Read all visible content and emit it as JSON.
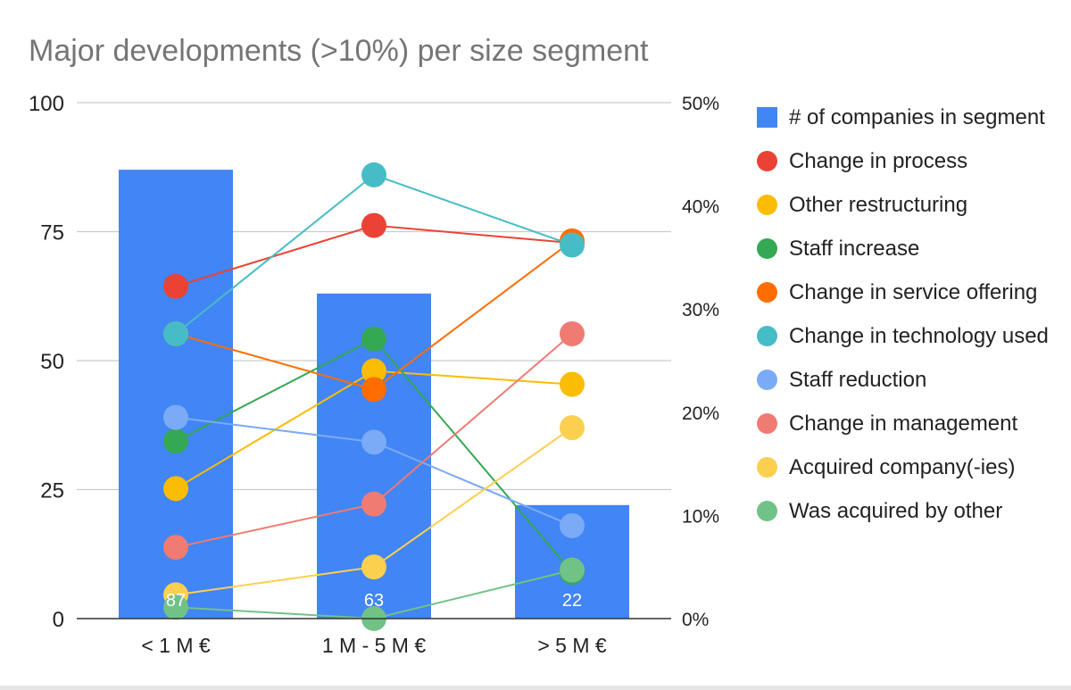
{
  "chart_data": {
    "type": "bar",
    "title": "Major developments (>10%) per size segment",
    "categories": [
      "< 1 M €",
      "1 M - 5 M €",
      "> 5 M €"
    ],
    "bar_series": {
      "name": "# of companies in segment",
      "color": "#4285f4",
      "values": [
        87,
        63,
        22
      ],
      "data_labels": [
        "87",
        "63",
        "22"
      ]
    },
    "left_axis": {
      "ylim": [
        0,
        100
      ],
      "ticks": [
        0,
        25,
        50,
        75,
        100
      ],
      "tick_labels": [
        "0",
        "25",
        "50",
        "75",
        "100"
      ]
    },
    "right_axis": {
      "ylim": [
        0,
        50
      ],
      "ticks": [
        0,
        10,
        20,
        30,
        40,
        50
      ],
      "tick_labels": [
        "0%",
        "10%",
        "20%",
        "30%",
        "40%",
        "50%"
      ]
    },
    "line_series": [
      {
        "name": "Change in process",
        "color": "#ea4335",
        "values": [
          32.2,
          38.1,
          36.4
        ]
      },
      {
        "name": "Other restructuring",
        "color": "#fbbc04",
        "values": [
          12.6,
          24.0,
          22.7
        ]
      },
      {
        "name": "Staff increase",
        "color": "#34a853",
        "values": [
          17.2,
          27.1,
          4.5
        ]
      },
      {
        "name": "Change in service offering",
        "color": "#ff6d01",
        "values": [
          27.6,
          22.2,
          36.6
        ]
      },
      {
        "name": "Change in technology used",
        "color": "#46bdc6",
        "values": [
          27.6,
          43.0,
          36.2
        ]
      },
      {
        "name": "Staff reduction",
        "color": "#7baaf7",
        "values": [
          19.5,
          17.1,
          9.0
        ]
      },
      {
        "name": "Change in management",
        "color": "#f07b72",
        "values": [
          6.9,
          11.1,
          27.6
        ]
      },
      {
        "name": "Acquired company(-ies)",
        "color": "#fcd04f",
        "values": [
          2.3,
          5.0,
          18.5
        ]
      },
      {
        "name": "Was acquired by other",
        "color": "#71c287",
        "values": [
          1.1,
          0.0,
          4.7
        ]
      }
    ],
    "grid": true,
    "legend": "right"
  }
}
